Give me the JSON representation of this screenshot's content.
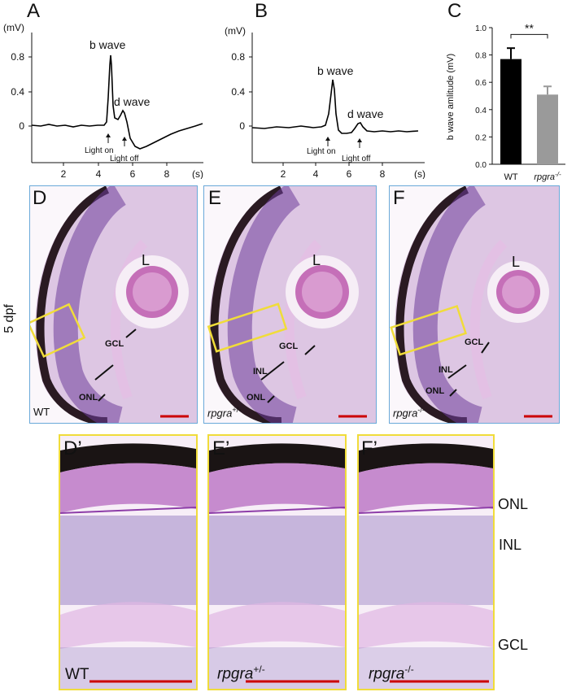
{
  "panels": {
    "A": "A",
    "B": "B",
    "C": "C",
    "D": "D",
    "E": "E",
    "F": "F",
    "Dp": "D’",
    "Ep": "E’",
    "Fp": "F’"
  },
  "erg": {
    "y_unit": "(mV)",
    "x_unit": "(s)",
    "y_ticks": [
      "0.8",
      "0.4",
      "0"
    ],
    "x_ticks": [
      "2",
      "4",
      "6",
      "8"
    ],
    "b_wave": "b wave",
    "d_wave": "d wave",
    "light_on": "Light on",
    "light_off": "Light off"
  },
  "chart_data": {
    "type": "bar",
    "categories": [
      "WT",
      "rpgra-/-"
    ],
    "values": [
      0.77,
      0.51
    ],
    "errors": [
      0.08,
      0.06
    ],
    "ylabel": "b wave amlitude (mV)",
    "ylim": [
      0,
      1.0
    ],
    "y_ticks": [
      "0.0",
      "0.2",
      "0.4",
      "0.6",
      "0.8",
      "1.0"
    ],
    "significance": "**",
    "colors": [
      "#000000",
      "#9a9a9a"
    ]
  },
  "histology": {
    "stage": "5 dpf",
    "lens": "L",
    "gcl": "GCL",
    "inl": "INL",
    "onl": "ONL",
    "wt": "WT",
    "gene": "rpgra",
    "het_sup": "+/-",
    "hom_sup": "-/-"
  },
  "zoom_layers": [
    "ONL",
    "INL",
    "GCL"
  ],
  "colors": {
    "panel_border": "#6aa9d9",
    "zoom_border": "#f0dc3a",
    "scale_bar": "#cc0000",
    "trace": "#000000"
  }
}
